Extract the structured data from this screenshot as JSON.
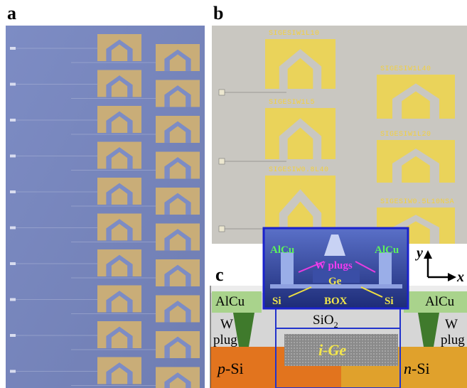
{
  "panels": {
    "a": {
      "label": "a"
    },
    "b": {
      "label": "b",
      "chip_labels": [
        "SIGESIW1L10",
        "SIGESIW1L5",
        "SIGESIW0.8L40",
        "SIGESIW1L40",
        "SIGESIW1L20",
        "SIGESIW0.5L10NSA"
      ]
    },
    "c": {
      "label": "c",
      "left_metal": "AlCu",
      "right_metal": "AlCu",
      "left_plug": {
        "line1": "W",
        "line2": "plug"
      },
      "right_plug": {
        "line1": "W",
        "line2": "plug"
      },
      "oxide": {
        "base": "SiO",
        "subscript": "2"
      },
      "p_region": {
        "italic": "p",
        "rest": "-Si"
      },
      "n_region": {
        "italic": "n",
        "rest": "-Si"
      },
      "absorber": "i-Ge",
      "axes": {
        "y": "y",
        "x": "x"
      },
      "inset": {
        "left_metal": "AlCu",
        "right_metal": "AlCu",
        "plugs": "W plugs",
        "ge": "Ge",
        "left_si": "Si",
        "right_si": "Si",
        "box": "BOX"
      }
    }
  }
}
